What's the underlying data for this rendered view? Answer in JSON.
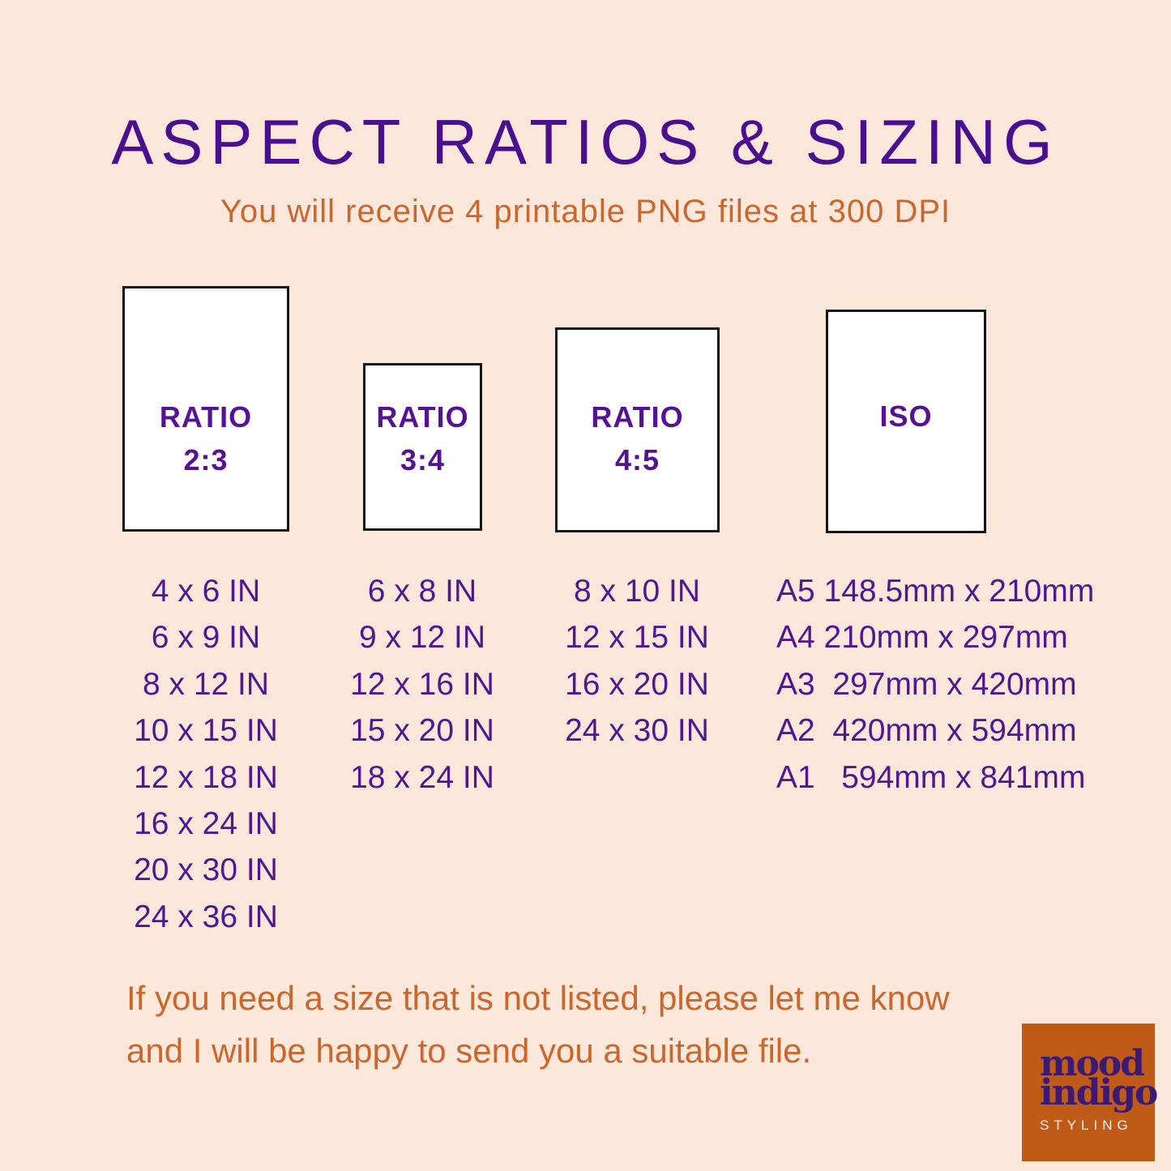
{
  "header": {
    "title": "ASPECT RATIOS & SIZING",
    "subtitle": "You will receive 4 printable PNG files at 300 DPI"
  },
  "groups": [
    {
      "label": "RATIO",
      "ratio": "2:3",
      "sizes": [
        "4 x 6 IN",
        "6 x 9 IN",
        "8 x 12 IN",
        "10 x 15 IN",
        "12 x 18 IN",
        "16 x 24 IN",
        "20 x 30 IN",
        "24 x 36 IN"
      ]
    },
    {
      "label": "RATIO",
      "ratio": "3:4",
      "sizes": [
        "6 x 8 IN",
        "9 x 12 IN",
        "12 x 16 IN",
        "15 x 20 IN",
        "18 x 24 IN"
      ]
    },
    {
      "label": "RATIO",
      "ratio": "4:5",
      "sizes": [
        "8 x 10 IN",
        "12 x 15 IN",
        "16 x 20 IN",
        "24 x 30 IN"
      ]
    },
    {
      "label": "ISO",
      "ratio": "",
      "sizes": [
        "A5 148.5mm x 210mm",
        "A4 210mm x 297mm",
        "A3  297mm x 420mm",
        "A2  420mm x 594mm",
        "A1   594mm x 841mm"
      ]
    }
  ],
  "footer": {
    "line1": "If you need a size that is not listed, please let me know",
    "line2": "and I will be happy to send you a suitable file."
  },
  "logo": {
    "word1": "mood",
    "word2": "indigo",
    "tagline": "STYLING"
  },
  "colors": {
    "background": "#fce8db",
    "purple-title": "#4b0e91",
    "purple-text": "#511692",
    "purple-bold": "#561295",
    "orange-text": "#cb662d",
    "box-border": "#161616",
    "box-fill": "#ffffff",
    "logo-bg": "#c05a17",
    "logo-purple": "#3b1a75",
    "logo-white": "#f6eef2"
  }
}
